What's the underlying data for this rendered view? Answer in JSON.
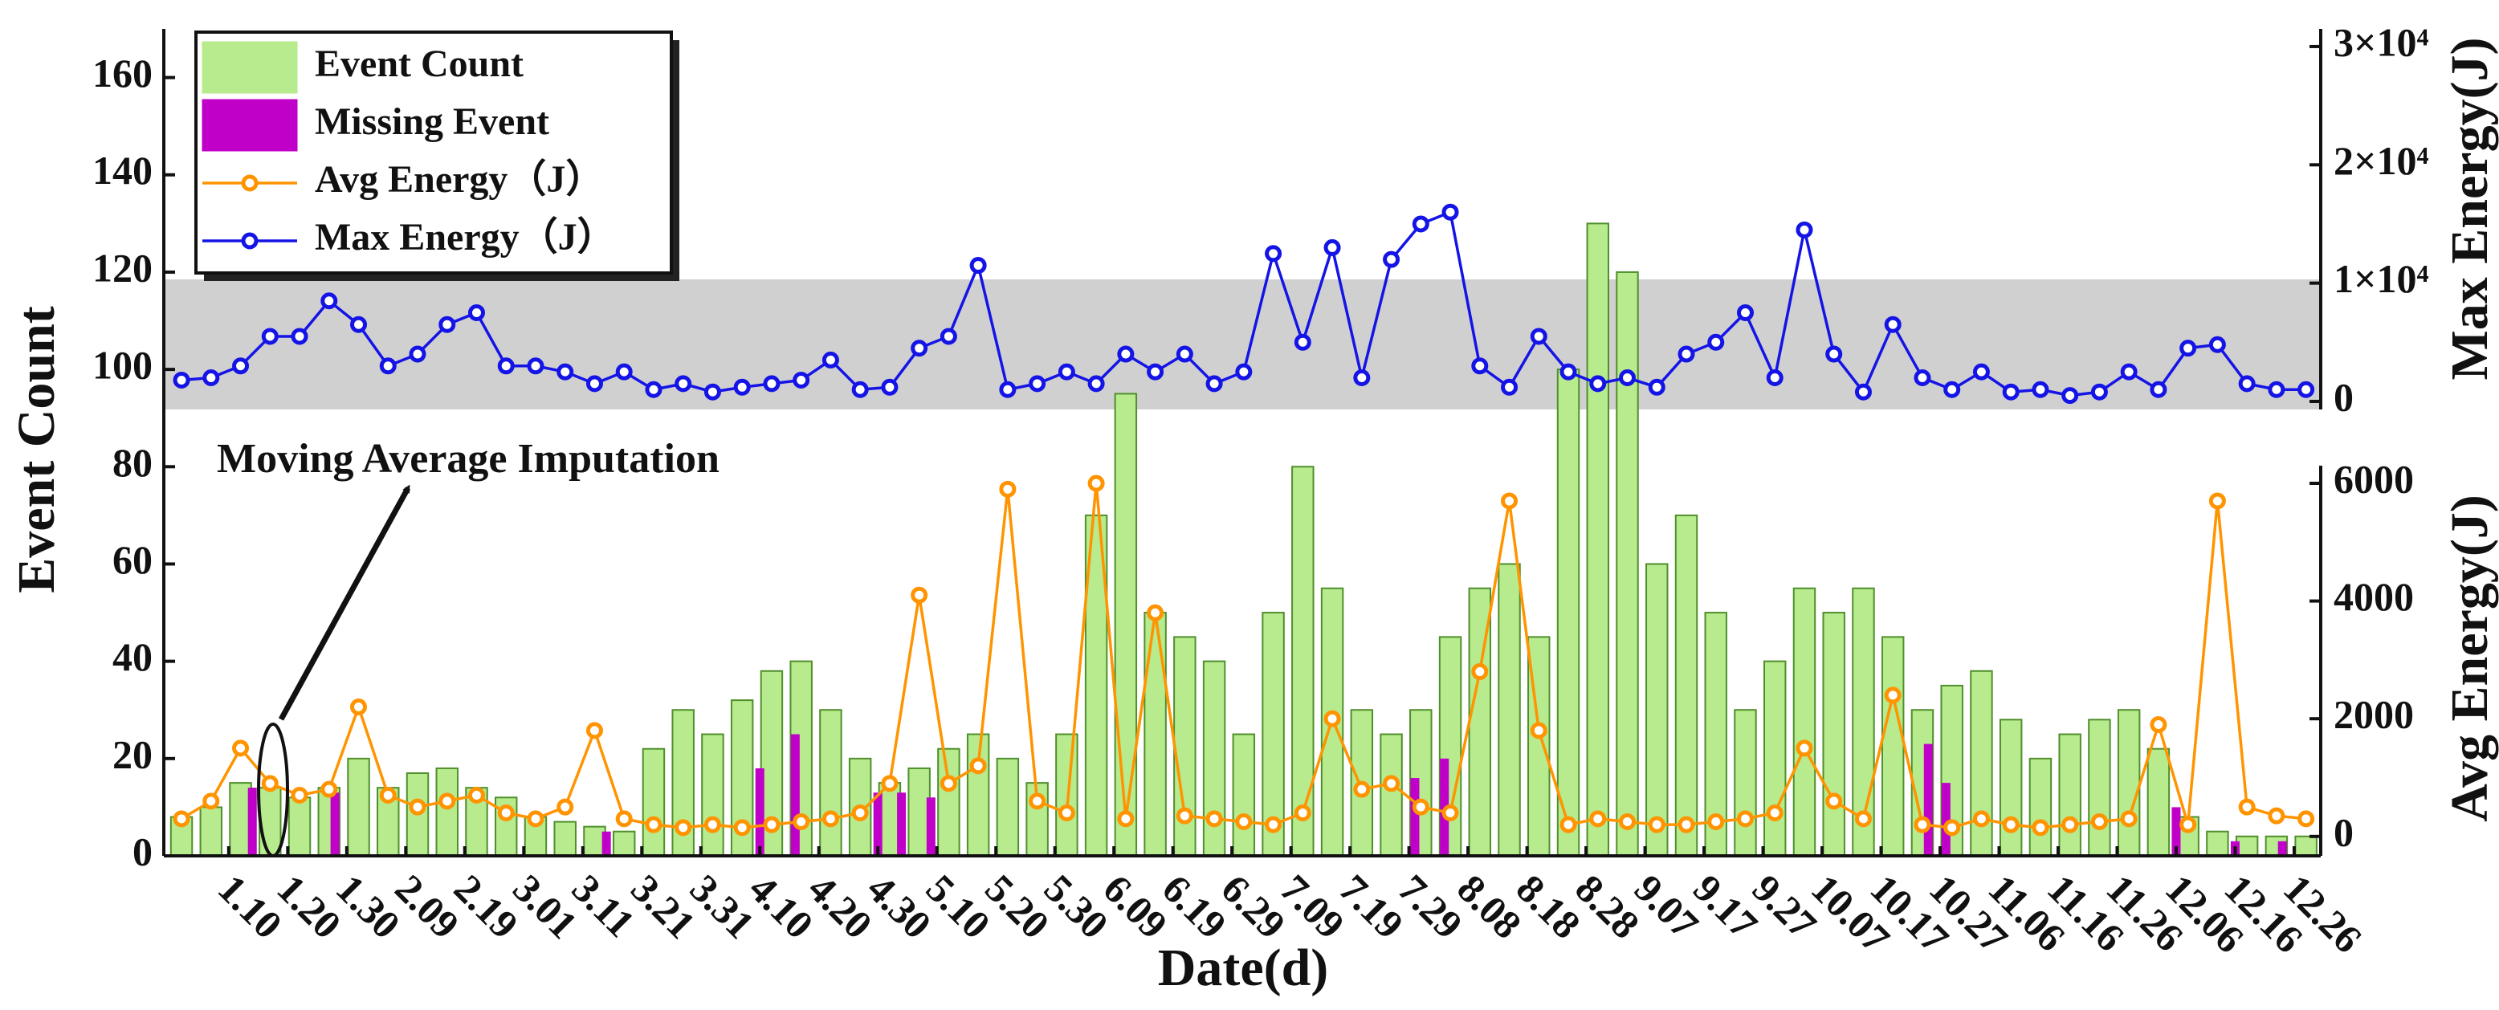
{
  "chart_data": {
    "type": "combo",
    "xlabel": "Date(d)",
    "ylabel": "Event Count",
    "y2label": "Avg Energy(J)",
    "y3label": "Max Energy(J)",
    "annotation": "Moving Average Imputation",
    "x": [
      2,
      7,
      12,
      17,
      22,
      27,
      32,
      37,
      42,
      47,
      52,
      57,
      62,
      67,
      72,
      77,
      82,
      87,
      92,
      97,
      102,
      107,
      112,
      117,
      122,
      127,
      132,
      137,
      142,
      147,
      152,
      157,
      162,
      167,
      172,
      177,
      182,
      187,
      192,
      197,
      202,
      207,
      212,
      217,
      222,
      227,
      232,
      237,
      242,
      247,
      252,
      257,
      262,
      267,
      272,
      277,
      282,
      287,
      292,
      297,
      302,
      307,
      312,
      317,
      322,
      327,
      332,
      337,
      342,
      347,
      352,
      357,
      362
    ],
    "xlim": [
      -1,
      364.5
    ],
    "xticks": [
      {
        "value": 10,
        "label": "1.10"
      },
      {
        "value": 20,
        "label": "1.20"
      },
      {
        "value": 30,
        "label": "1.30"
      },
      {
        "value": 40,
        "label": "2.09"
      },
      {
        "value": 50,
        "label": "2.19"
      },
      {
        "value": 60,
        "label": "3.01"
      },
      {
        "value": 70,
        "label": "3.11"
      },
      {
        "value": 80,
        "label": "3.21"
      },
      {
        "value": 90,
        "label": "3.31"
      },
      {
        "value": 100,
        "label": "4.10"
      },
      {
        "value": 110,
        "label": "4.20"
      },
      {
        "value": 120,
        "label": "4.30"
      },
      {
        "value": 130,
        "label": "5.10"
      },
      {
        "value": 140,
        "label": "5.20"
      },
      {
        "value": 150,
        "label": "5.30"
      },
      {
        "value": 160,
        "label": "6.09"
      },
      {
        "value": 170,
        "label": "6.19"
      },
      {
        "value": 180,
        "label": "6.29"
      },
      {
        "value": 190,
        "label": "7.09"
      },
      {
        "value": 200,
        "label": "7.19"
      },
      {
        "value": 210,
        "label": "7.29"
      },
      {
        "value": 220,
        "label": "8.08"
      },
      {
        "value": 230,
        "label": "8.18"
      },
      {
        "value": 240,
        "label": "8.28"
      },
      {
        "value": 250,
        "label": "9.07"
      },
      {
        "value": 260,
        "label": "9.17"
      },
      {
        "value": 270,
        "label": "9.27"
      },
      {
        "value": 280,
        "label": "10.07"
      },
      {
        "value": 290,
        "label": "10.17"
      },
      {
        "value": 300,
        "label": "10.27"
      },
      {
        "value": 310,
        "label": "11.06"
      },
      {
        "value": 320,
        "label": "11.16"
      },
      {
        "value": 330,
        "label": "11.26"
      },
      {
        "value": 340,
        "label": "12.06"
      },
      {
        "value": 350,
        "label": "12.16"
      },
      {
        "value": 360,
        "label": "12.26"
      }
    ],
    "ylim": [
      0,
      170
    ],
    "yticks": [
      0,
      20,
      40,
      60,
      80,
      100,
      120,
      140,
      160
    ],
    "y2lim": [
      -330,
      6300
    ],
    "y2ticks": [
      0,
      2000,
      4000,
      6000
    ],
    "y3lim": [
      -680,
      31490
    ],
    "y3ticks": [
      0,
      {
        "value": 10000,
        "label": "1×10⁴"
      },
      {
        "value": 20000,
        "label": "2×10⁴"
      },
      {
        "value": 30000,
        "label": "3×10⁴"
      }
    ],
    "legend": "upper-left",
    "series": [
      {
        "name": "Event Count",
        "type": "bar",
        "color": "#b8ea8e",
        "values": [
          8,
          10,
          15,
          14,
          12,
          14,
          20,
          14,
          17,
          18,
          14,
          12,
          8,
          7,
          6,
          5,
          22,
          30,
          25,
          32,
          38,
          40,
          30,
          20,
          15,
          18,
          22,
          25,
          20,
          15,
          25,
          70,
          95,
          50,
          45,
          40,
          25,
          50,
          80,
          55,
          30,
          25,
          30,
          45,
          55,
          60,
          45,
          100,
          130,
          120,
          60,
          70,
          50,
          30,
          40,
          55,
          50,
          55,
          45,
          30,
          35,
          38,
          28,
          20,
          25,
          28,
          30,
          22,
          8,
          5,
          4,
          4,
          4
        ]
      },
      {
        "name": "Missing Event",
        "type": "bar",
        "color": "#c000c8",
        "x": [
          14,
          28,
          74,
          100,
          106,
          120,
          124,
          129,
          211,
          216,
          298,
          301,
          340,
          350,
          358
        ],
        "values": [
          14,
          13,
          5,
          18,
          25,
          13,
          13,
          12,
          16,
          20,
          23,
          15,
          10,
          3,
          3
        ]
      },
      {
        "name": "Avg Energy（J）",
        "type": "line",
        "axis": "y2",
        "color": "#ff9400",
        "values": [
          300,
          600,
          1500,
          900,
          700,
          800,
          2200,
          700,
          500,
          600,
          700,
          400,
          300,
          500,
          1800,
          300,
          200,
          150,
          200,
          150,
          200,
          250,
          300,
          400,
          900,
          4100,
          900,
          1200,
          5900,
          600,
          400,
          6000,
          300,
          3800,
          350,
          300,
          250,
          200,
          400,
          2000,
          800,
          900,
          500,
          400,
          2800,
          5700,
          1800,
          200,
          300,
          250,
          200,
          200,
          250,
          300,
          400,
          1500,
          600,
          300,
          2400,
          200,
          150,
          300,
          200,
          150,
          200,
          250,
          300,
          1900,
          200,
          5700,
          500,
          350,
          300
        ]
      },
      {
        "name": "Max Energy（J）",
        "type": "line",
        "axis": "y3",
        "color": "#1414e6",
        "values": [
          1800,
          2000,
          3000,
          5500,
          5500,
          8500,
          6500,
          3000,
          4000,
          6500,
          7500,
          3000,
          3000,
          2500,
          1500,
          2500,
          1000,
          1500,
          800,
          1200,
          1500,
          1800,
          3500,
          1000,
          1200,
          4500,
          5500,
          11500,
          1000,
          1500,
          2500,
          1500,
          4000,
          2500,
          4000,
          1500,
          2500,
          12500,
          5000,
          13000,
          2000,
          12000,
          15000,
          16000,
          3000,
          1200,
          5500,
          2500,
          1500,
          2000,
          1200,
          4000,
          5000,
          7500,
          2000,
          14500,
          4000,
          800,
          6500,
          2000,
          1000,
          2500,
          800,
          1000,
          500,
          800,
          2500,
          1000,
          4500,
          4800,
          1500,
          1000,
          1000
        ]
      }
    ]
  }
}
